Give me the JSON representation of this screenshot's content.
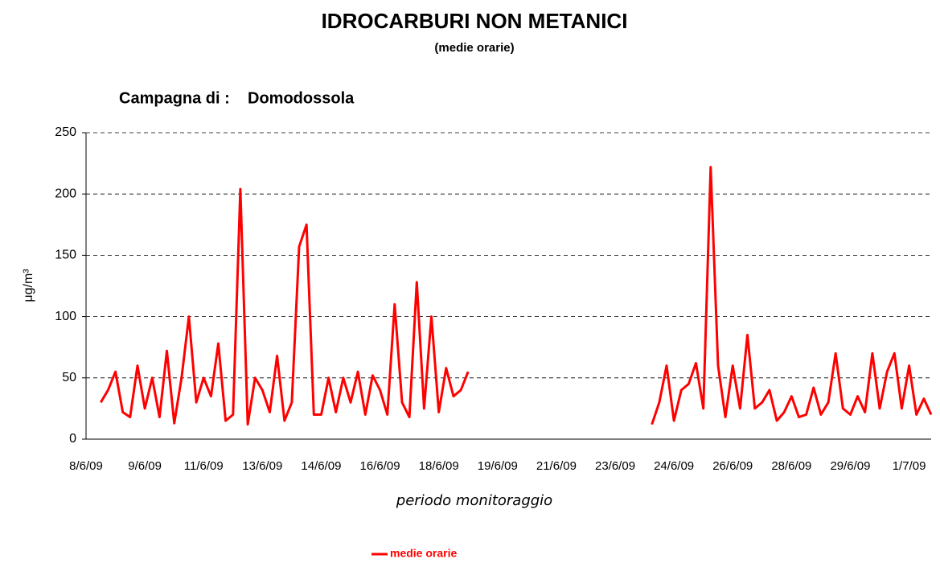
{
  "chart_data": {
    "type": "line",
    "title": "IDROCARBURI NON METANICI",
    "subtitle": "(medie orarie)",
    "annotation": "Campagna di :    Domodossola",
    "y_label": "μg/m³",
    "x_label": "periodo monitoraggio",
    "categories": [
      "8/6/09",
      null,
      null,
      null,
      null,
      null,
      null,
      null,
      "9/6/09",
      null,
      null,
      null,
      null,
      null,
      null,
      null,
      "11/6/09",
      null,
      null,
      null,
      null,
      null,
      null,
      null,
      "13/6/09",
      null,
      null,
      null,
      null,
      null,
      null,
      null,
      "14/6/09",
      null,
      null,
      null,
      null,
      null,
      null,
      null,
      "16/6/09",
      null,
      null,
      null,
      null,
      null,
      null,
      null,
      "18/6/09",
      null,
      null,
      null,
      null,
      null,
      null,
      null,
      "19/6/09",
      null,
      null,
      null,
      null,
      null,
      null,
      null,
      "21/6/09",
      null,
      null,
      null,
      null,
      null,
      null,
      null,
      "23/6/09",
      null,
      null,
      null,
      null,
      null,
      null,
      null,
      "24/6/09",
      null,
      null,
      null,
      null,
      null,
      null,
      null,
      "26/6/09",
      null,
      null,
      null,
      null,
      null,
      null,
      null,
      "28/6/09",
      null,
      null,
      null,
      null,
      null,
      null,
      null,
      "29/6/09",
      null,
      null,
      null,
      null,
      null,
      null,
      null,
      "1/7/09",
      null,
      null,
      null
    ],
    "series": [
      {
        "name": "medie orarie",
        "color": "#ff0000",
        "values": [
          null,
          null,
          30,
          40,
          55,
          22,
          18,
          60,
          25,
          50,
          18,
          72,
          13,
          50,
          100,
          30,
          50,
          35,
          78,
          15,
          20,
          204,
          12,
          50,
          40,
          22,
          68,
          15,
          30,
          157,
          175,
          20,
          20,
          50,
          22,
          50,
          30,
          55,
          20,
          52,
          40,
          20,
          110,
          30,
          18,
          128,
          25,
          100,
          22,
          58,
          35,
          40,
          55,
          null,
          null,
          null,
          null,
          null,
          null,
          null,
          null,
          null,
          null,
          null,
          null,
          null,
          null,
          null,
          null,
          null,
          null,
          null,
          null,
          null,
          null,
          null,
          null,
          12,
          30,
          60,
          15,
          40,
          45,
          62,
          25,
          222,
          60,
          18,
          60,
          25,
          85,
          25,
          30,
          40,
          15,
          22,
          35,
          18,
          20,
          42,
          20,
          30,
          70,
          25,
          20,
          35,
          22,
          70,
          25,
          55,
          70,
          25,
          60,
          20,
          33,
          20
        ]
      }
    ],
    "ylim": [
      0,
      250
    ],
    "yticks": [
      0,
      50,
      100,
      150,
      200,
      250
    ],
    "grid": true,
    "legend": "bottom"
  }
}
